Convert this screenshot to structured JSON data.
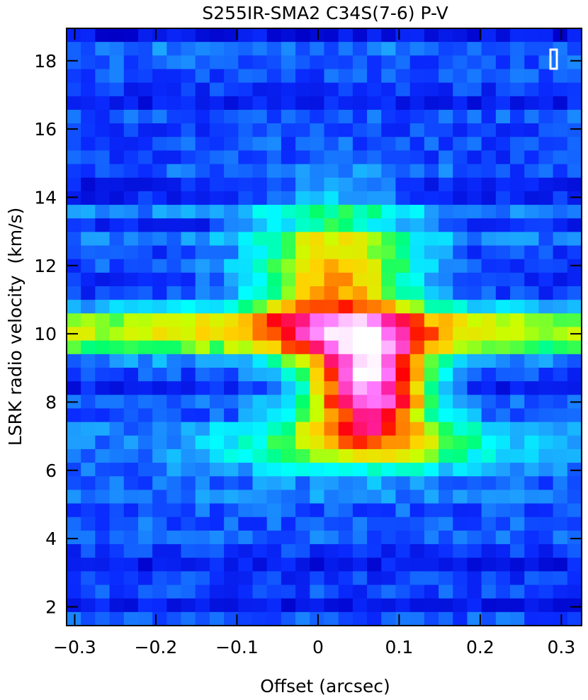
{
  "chart_data": {
    "type": "heatmap",
    "title": "S255IR-SMA2 C34S(7-6) P-V",
    "xlabel": "Offset (arcsec)",
    "ylabel": "LSRK radio velocity  (km/s)",
    "xlim": [
      -0.31,
      0.325
    ],
    "ylim": [
      1.45,
      18.95
    ],
    "x_ticks": [
      -0.3,
      -0.2,
      -0.1,
      0,
      0.1,
      0.2,
      0.3
    ],
    "x_tick_labels": [
      "−0.3",
      "−0.2",
      "−0.1",
      "0",
      "0.1",
      "0.2",
      "0.3"
    ],
    "y_ticks": [
      2,
      4,
      6,
      8,
      10,
      12,
      14,
      16,
      18
    ],
    "y_tick_labels": [
      "2",
      "4",
      "6",
      "8",
      "10",
      "12",
      "14",
      "16",
      "18"
    ],
    "colormap": [
      "#000060",
      "#0000c8",
      "#0a2cff",
      "#1ea0ff",
      "#00ffff",
      "#00ff6e",
      "#c8ff00",
      "#ffd200",
      "#ff6e00",
      "#ff0000",
      "#ff1ea0",
      "#ff78ff",
      "#ffffff"
    ],
    "peak": {
      "offset": 0.06,
      "velocity": 8.5,
      "level": 1.0
    },
    "components": [
      {
        "name": "core",
        "offset": 0.065,
        "velocity": 8.5,
        "offset_sigma": 0.05,
        "velocity_sigma": 1.0,
        "amplitude": 0.75
      },
      {
        "name": "emission ridge",
        "offset": 0.02,
        "velocity": 11.5,
        "offset_sigma": 0.07,
        "velocity_sigma": 1.6,
        "amplitude": 0.45
      },
      {
        "name": "horizontal band",
        "offset": 0.0,
        "velocity": 10.1,
        "offset_sigma": 0.55,
        "velocity_sigma": 0.55,
        "amplitude": 0.36
      },
      {
        "name": "lower extension",
        "offset": 0.06,
        "velocity": 6.8,
        "offset_sigma": 0.12,
        "velocity_sigma": 0.6,
        "amplitude": 0.3
      }
    ],
    "background_level": 0.17
  }
}
